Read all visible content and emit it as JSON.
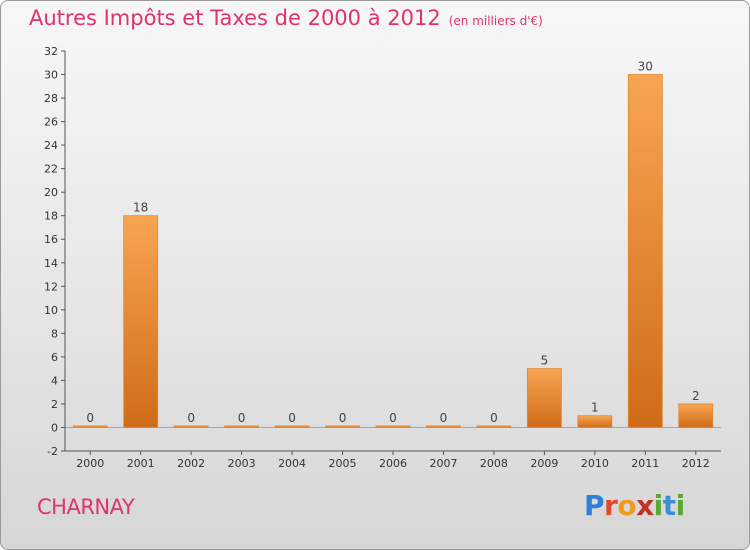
{
  "header": {
    "title": "Autres Impôts et Taxes de 2000 à 2012",
    "unit": "(en milliers d'€)"
  },
  "footer": {
    "commune": "CHARNAY",
    "logo": "Proxiti"
  },
  "colors": {
    "title": "#e0326e",
    "bar_light": "#f7a552",
    "bar_dark": "#d4711a"
  },
  "chart_data": {
    "type": "bar",
    "title": "Autres Impôts et Taxes de 2000 à 2012",
    "xlabel": "",
    "ylabel": "",
    "categories": [
      "2000",
      "2001",
      "2002",
      "2003",
      "2004",
      "2005",
      "2006",
      "2007",
      "2008",
      "2009",
      "2010",
      "2011",
      "2012"
    ],
    "values": [
      0,
      18,
      0,
      0,
      0,
      0,
      0,
      0,
      0,
      5,
      1,
      30,
      2
    ],
    "ylim": [
      -2,
      32
    ],
    "yticks": [
      -2,
      0,
      2,
      4,
      6,
      8,
      10,
      12,
      14,
      16,
      18,
      20,
      22,
      24,
      26,
      28,
      30,
      32
    ],
    "grid": false,
    "data_labels": true
  }
}
